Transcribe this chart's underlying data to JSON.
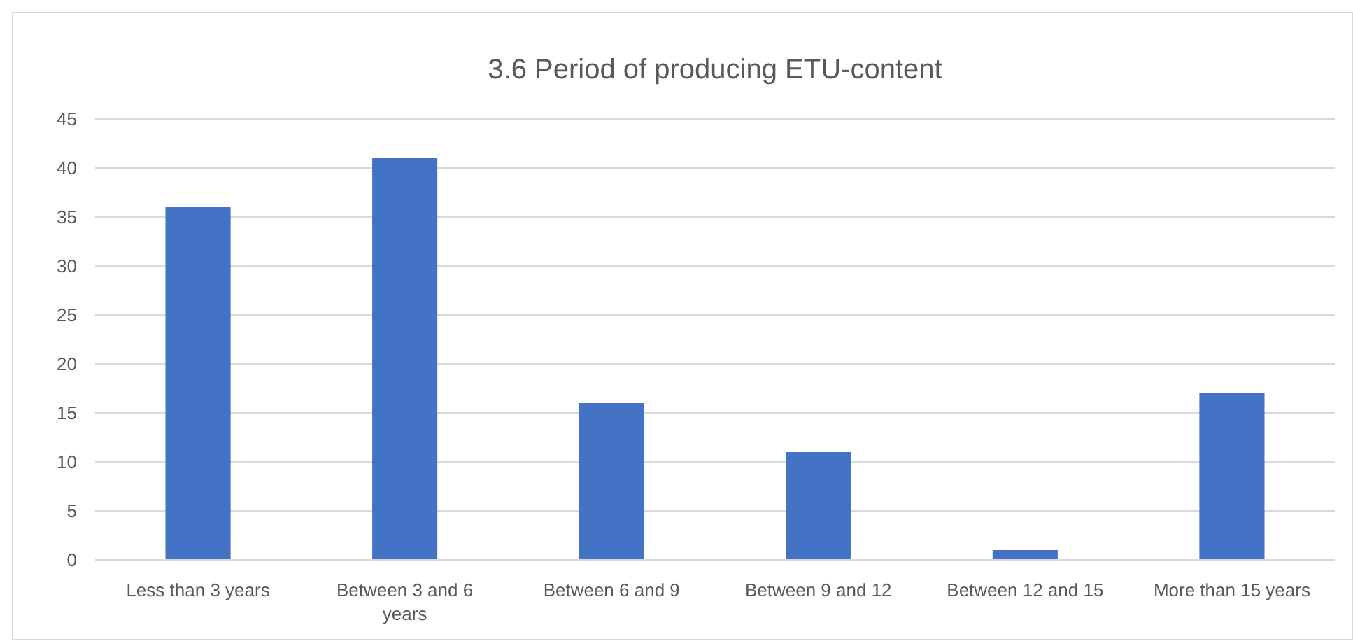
{
  "chart_data": {
    "type": "bar",
    "title": "3.6 Period of producing ETU-content",
    "categories": [
      "Less than 3 years",
      "Between 3 and 6 years",
      "Between 6 and 9",
      "Between 9 and 12",
      "Between 12 and 15",
      "More than 15 years"
    ],
    "values": [
      36,
      41,
      16,
      11,
      1,
      17
    ],
    "color": "#4472c4",
    "ylim": [
      0,
      45
    ],
    "yticks": [
      0,
      5,
      10,
      15,
      20,
      25,
      30,
      35,
      40,
      45
    ],
    "grid": "y"
  }
}
